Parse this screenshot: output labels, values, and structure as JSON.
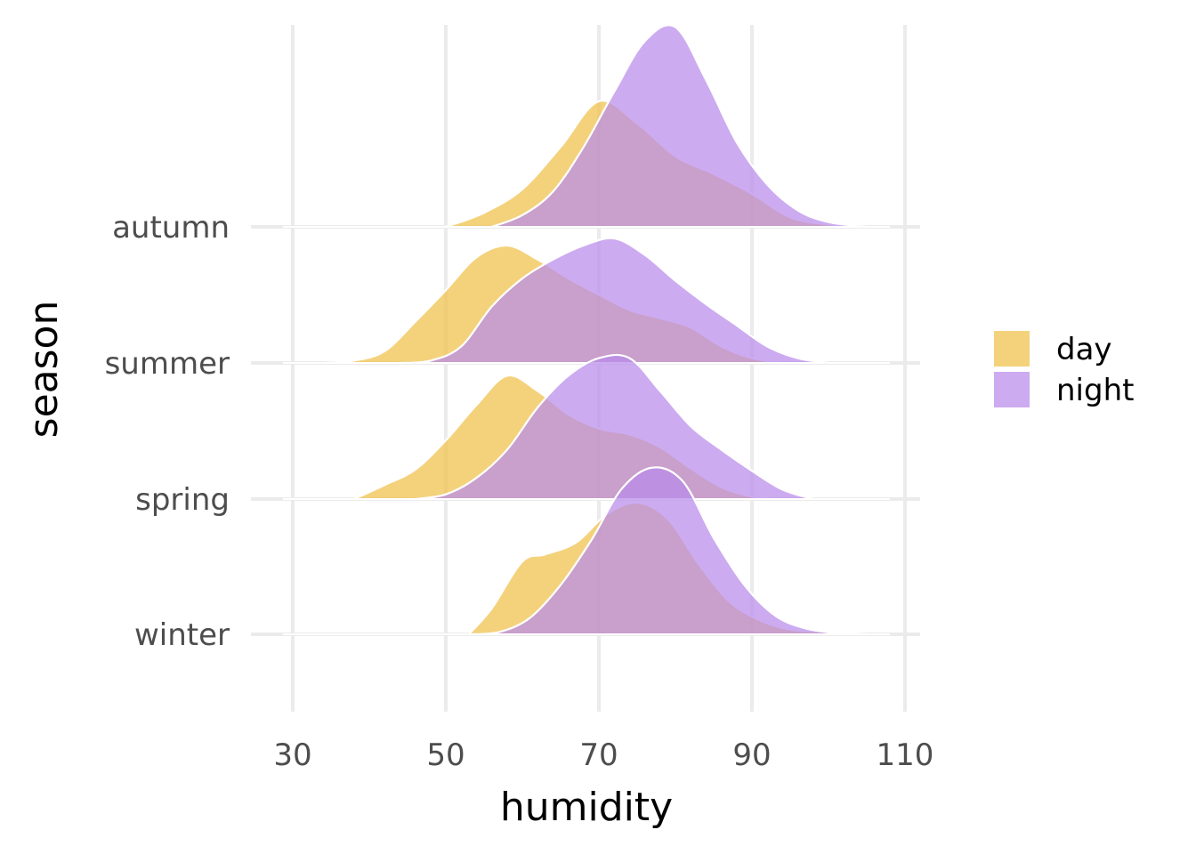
{
  "chart_data": {
    "type": "ridgeline-density",
    "xlabel": "humidity",
    "ylabel": "season",
    "xlim": [
      30,
      110
    ],
    "x_ticks": [
      30,
      50,
      70,
      90,
      110
    ],
    "categories": [
      "winter",
      "spring",
      "summer",
      "autumn"
    ],
    "legend_position": "right",
    "grid": true,
    "series": [
      {
        "name": "day",
        "color": "#f0c04a",
        "ridges": {
          "autumn": [
            [
              50,
              0
            ],
            [
              55,
              0.12
            ],
            [
              60,
              0.32
            ],
            [
              65,
              0.68
            ],
            [
              70,
              1.07
            ],
            [
              75,
              0.88
            ],
            [
              80,
              0.6
            ],
            [
              85,
              0.45
            ],
            [
              90,
              0.28
            ],
            [
              95,
              0.08
            ],
            [
              100,
              0.02
            ],
            [
              105,
              0
            ]
          ],
          "summer": [
            [
              34,
              0
            ],
            [
              38,
              0.02
            ],
            [
              42,
              0.1
            ],
            [
              46,
              0.35
            ],
            [
              50,
              0.62
            ],
            [
              54,
              0.9
            ],
            [
              58,
              1.0
            ],
            [
              62,
              0.88
            ],
            [
              66,
              0.72
            ],
            [
              70,
              0.58
            ],
            [
              74,
              0.45
            ],
            [
              78,
              0.38
            ],
            [
              82,
              0.3
            ],
            [
              86,
              0.14
            ],
            [
              90,
              0.04
            ],
            [
              94,
              0
            ]
          ],
          "spring": [
            [
              38,
              0
            ],
            [
              42,
              0.12
            ],
            [
              46,
              0.25
            ],
            [
              50,
              0.5
            ],
            [
              54,
              0.8
            ],
            [
              58,
              1.05
            ],
            [
              62,
              0.92
            ],
            [
              66,
              0.72
            ],
            [
              70,
              0.6
            ],
            [
              74,
              0.55
            ],
            [
              78,
              0.44
            ],
            [
              82,
              0.26
            ],
            [
              86,
              0.1
            ],
            [
              90,
              0.02
            ],
            [
              94,
              0
            ]
          ],
          "winter": [
            [
              53,
              0
            ],
            [
              56,
              0.22
            ],
            [
              60,
              0.62
            ],
            [
              63,
              0.68
            ],
            [
              67,
              0.78
            ],
            [
              71,
              1.02
            ],
            [
              75,
              1.12
            ],
            [
              79,
              0.98
            ],
            [
              83,
              0.6
            ],
            [
              87,
              0.28
            ],
            [
              91,
              0.12
            ],
            [
              95,
              0.04
            ],
            [
              100,
              0.02
            ],
            [
              105,
              0
            ]
          ]
        }
      },
      {
        "name": "night",
        "color": "#b98aea",
        "ridges": {
          "autumn": [
            [
              56,
              0
            ],
            [
              60,
              0.1
            ],
            [
              64,
              0.3
            ],
            [
              68,
              0.68
            ],
            [
              72,
              1.15
            ],
            [
              76,
              1.58
            ],
            [
              80,
              1.7
            ],
            [
              84,
              1.25
            ],
            [
              88,
              0.72
            ],
            [
              92,
              0.36
            ],
            [
              96,
              0.14
            ],
            [
              100,
              0.04
            ],
            [
              105,
              0
            ]
          ],
          "summer": [
            [
              44,
              0
            ],
            [
              48,
              0.02
            ],
            [
              52,
              0.14
            ],
            [
              56,
              0.48
            ],
            [
              60,
              0.72
            ],
            [
              64,
              0.88
            ],
            [
              68,
              1.0
            ],
            [
              72,
              1.06
            ],
            [
              76,
              0.92
            ],
            [
              80,
              0.7
            ],
            [
              84,
              0.5
            ],
            [
              88,
              0.32
            ],
            [
              92,
              0.14
            ],
            [
              96,
              0.04
            ],
            [
              100,
              0
            ]
          ],
          "spring": [
            [
              46,
              0
            ],
            [
              50,
              0.04
            ],
            [
              54,
              0.18
            ],
            [
              58,
              0.42
            ],
            [
              62,
              0.78
            ],
            [
              66,
              1.05
            ],
            [
              70,
              1.2
            ],
            [
              74,
              1.2
            ],
            [
              78,
              0.92
            ],
            [
              82,
              0.62
            ],
            [
              86,
              0.42
            ],
            [
              90,
              0.24
            ],
            [
              94,
              0.08
            ],
            [
              98,
              0
            ]
          ],
          "winter": [
            [
              53,
              0
            ],
            [
              57,
              0.02
            ],
            [
              61,
              0.14
            ],
            [
              65,
              0.42
            ],
            [
              69,
              0.8
            ],
            [
              73,
              1.24
            ],
            [
              77,
              1.42
            ],
            [
              81,
              1.3
            ],
            [
              85,
              0.82
            ],
            [
              89,
              0.42
            ],
            [
              93,
              0.16
            ],
            [
              97,
              0.05
            ],
            [
              102,
              0
            ]
          ]
        }
      }
    ]
  }
}
